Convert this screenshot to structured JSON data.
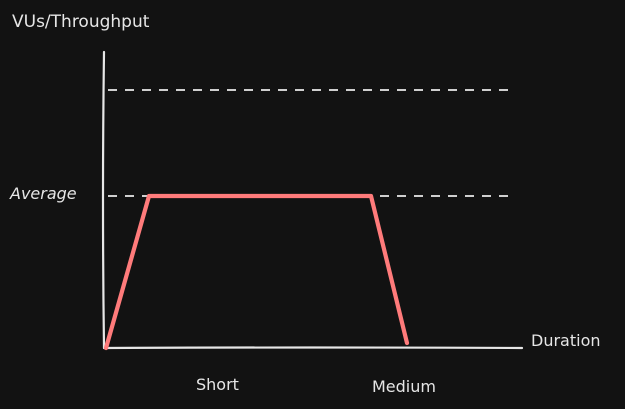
{
  "diagram": {
    "y_axis_title": "VUs/Throughput",
    "x_axis_title": "Duration",
    "y_marker_label": "Average",
    "x_category_labels": [
      "Short",
      "Medium"
    ]
  },
  "colors": {
    "background": "#121212",
    "axis": "#e6e6e6",
    "guide_dashes": "#cfcfcf",
    "load_profile": "#ff7b7b"
  },
  "chart_data": {
    "type": "line",
    "title": "",
    "xlabel": "Duration",
    "ylabel": "VUs/Throughput",
    "categories": [
      "Short",
      "Medium"
    ],
    "y_ticks": [
      "Average"
    ],
    "series": [
      {
        "values": [
          {
            "x": "start",
            "y": 0
          },
          {
            "x": "ramp-up end",
            "y": "Average"
          },
          {
            "x": "ramp-down start",
            "y": "Average"
          },
          {
            "x": "Medium",
            "y": 0
          }
        ]
      }
    ],
    "grid": "dashed horizontal guides at Average and above",
    "legend": "none"
  }
}
